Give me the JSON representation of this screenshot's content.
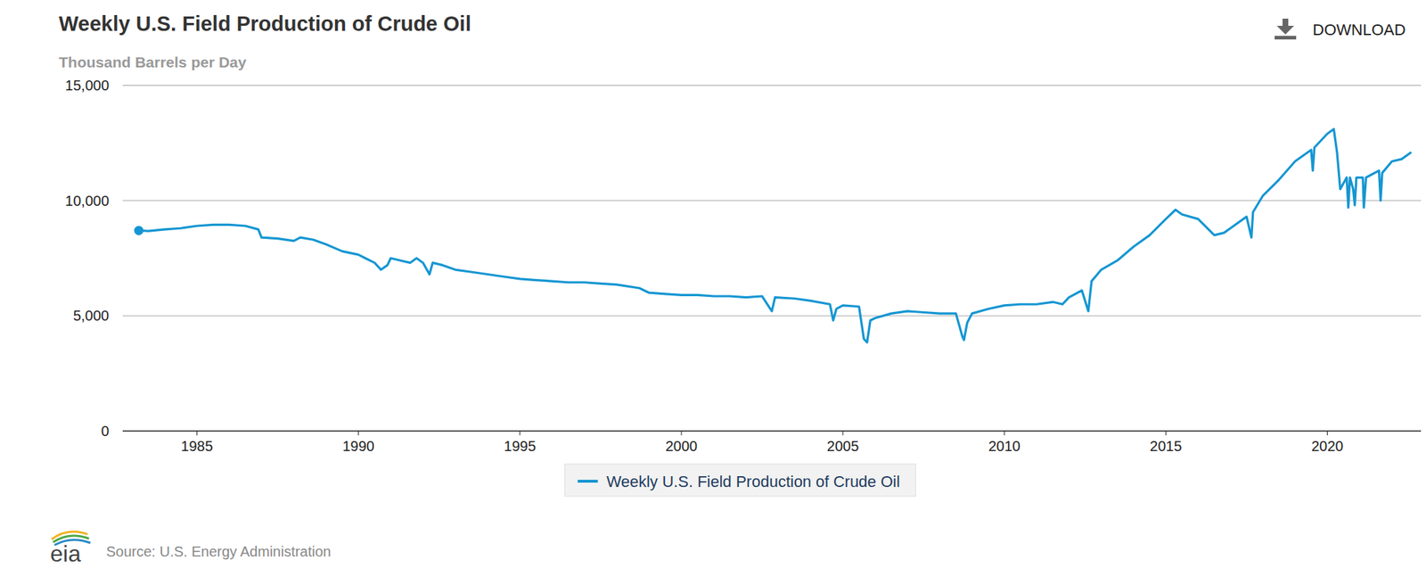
{
  "chart_data": {
    "type": "line",
    "title": "Weekly U.S. Field Production of Crude Oil",
    "subtitle": "Thousand Barrels per Day",
    "button": "DOWNLOAD",
    "logo": "eia",
    "source": "Source: U.S. Energy Administration",
    "legend": "bottom",
    "grid": true,
    "marker": "circle",
    "xlim": [
      1982.7,
      2022.9
    ],
    "xticks": [
      1985,
      1990,
      1995,
      2000,
      2005,
      2010,
      2015,
      2020
    ],
    "ylim": [
      0,
      15000
    ],
    "yticks": [
      {
        "value": 15000,
        "label": "15,000"
      },
      {
        "value": 10000,
        "label": "10,000"
      },
      {
        "value": 5000,
        "label": "5,000"
      },
      0
    ],
    "x": [
      1983.2,
      1983.5,
      1984.0,
      1984.5,
      1985.0,
      1985.5,
      1986.0,
      1986.5,
      1986.9,
      1987.0,
      1987.5,
      1988.0,
      1988.2,
      1988.6,
      1989.0,
      1989.5,
      1990.0,
      1990.5,
      1990.7,
      1990.9,
      1991.0,
      1991.3,
      1991.6,
      1991.8,
      1992.0,
      1992.2,
      1992.3,
      1992.6,
      1993.0,
      1993.5,
      1994.0,
      1994.5,
      1995.0,
      1995.5,
      1996.0,
      1996.5,
      1997.0,
      1997.5,
      1998.0,
      1998.7,
      1999.0,
      1999.5,
      2000.0,
      2000.5,
      2001.0,
      2001.5,
      2002.0,
      2002.5,
      2002.8,
      2002.9,
      2003.5,
      2004.0,
      2004.6,
      2004.7,
      2004.8,
      2005.0,
      2005.5,
      2005.65,
      2005.75,
      2005.85,
      2006.0,
      2006.5,
      2007.0,
      2007.5,
      2008.0,
      2008.5,
      2008.7,
      2008.75,
      2008.85,
      2009.0,
      2009.5,
      2010.0,
      2010.5,
      2011.0,
      2011.5,
      2011.8,
      2012.0,
      2012.4,
      2012.6,
      2012.7,
      2013.0,
      2013.5,
      2014.0,
      2014.5,
      2015.0,
      2015.3,
      2015.5,
      2016.0,
      2016.5,
      2016.8,
      2017.0,
      2017.5,
      2017.65,
      2017.7,
      2018.0,
      2018.5,
      2019.0,
      2019.5,
      2019.55,
      2019.6,
      2020.0,
      2020.2,
      2020.3,
      2020.4,
      2020.6,
      2020.65,
      2020.7,
      2020.8,
      2020.85,
      2020.9,
      2021.1,
      2021.13,
      2021.2,
      2021.6,
      2021.65,
      2021.7,
      2022.0,
      2022.3,
      2022.6
    ],
    "series": [
      {
        "name": "Weekly U.S. Field Production of Crude Oil",
        "color": "#1596d2",
        "values": [
          8700,
          8680,
          8750,
          8800,
          8900,
          8950,
          8950,
          8900,
          8750,
          8400,
          8350,
          8250,
          8400,
          8300,
          8100,
          7800,
          7650,
          7300,
          7000,
          7200,
          7500,
          7400,
          7300,
          7500,
          7300,
          6800,
          7300,
          7200,
          7000,
          6900,
          6800,
          6700,
          6600,
          6550,
          6500,
          6450,
          6450,
          6400,
          6350,
          6200,
          6000,
          5950,
          5900,
          5900,
          5850,
          5850,
          5800,
          5850,
          5200,
          5800,
          5750,
          5650,
          5500,
          4800,
          5300,
          5450,
          5400,
          4000,
          3850,
          4800,
          4900,
          5100,
          5200,
          5150,
          5100,
          5100,
          4100,
          3950,
          4700,
          5100,
          5300,
          5450,
          5500,
          5500,
          5600,
          5500,
          5800,
          6100,
          5200,
          6500,
          7000,
          7400,
          8000,
          8500,
          9200,
          9600,
          9400,
          9200,
          8500,
          8600,
          8800,
          9300,
          8400,
          9500,
          10200,
          10900,
          11700,
          12200,
          11300,
          12300,
          12900,
          13100,
          12100,
          10500,
          11000,
          9700,
          11000,
          10500,
          9800,
          11000,
          11000,
          9700,
          11000,
          11300,
          10000,
          11200,
          11700,
          11800,
          12100
        ]
      }
    ]
  }
}
